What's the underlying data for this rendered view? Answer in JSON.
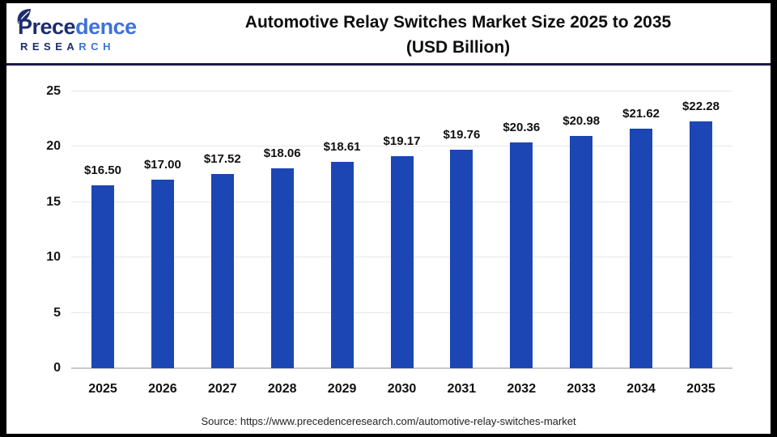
{
  "header": {
    "logo": {
      "name_dark": "Prece",
      "name_light": "dence",
      "sub_dark": "RESEA",
      "sub_light": "RCH"
    },
    "title_line1": "Automotive Relay Switches Market Size 2025 to 2035",
    "title_line2": "(USD Billion)"
  },
  "footer": {
    "source": "Source: https://www.precedenceresearch.com/automotive-relay-switches-market"
  },
  "colors": {
    "bar": "#1b46b3",
    "header_rule": "#191a4e",
    "gridline": "#e7e7e7",
    "axis_line": "#c9c9c9",
    "logo_dark": "#1d2d6e",
    "logo_light": "#3f72d9",
    "text": "#111111"
  },
  "chart_data": {
    "type": "bar",
    "title": "Automotive Relay Switches Market Size 2025 to 2035 (USD Billion)",
    "categories": [
      "2025",
      "2026",
      "2027",
      "2028",
      "2029",
      "2030",
      "2031",
      "2032",
      "2033",
      "2034",
      "2035"
    ],
    "values": [
      16.5,
      17.0,
      17.52,
      18.06,
      18.61,
      19.17,
      19.76,
      20.36,
      20.98,
      21.62,
      22.28
    ],
    "bar_labels": [
      "$16.50",
      "$17.00",
      "$17.52",
      "$18.06",
      "$18.61",
      "$19.17",
      "$19.76",
      "$20.36",
      "$20.98",
      "$21.62",
      "$22.28"
    ],
    "xlabel": "",
    "ylabel": "",
    "ylim": [
      0,
      25
    ],
    "yticks": [
      0,
      5,
      10,
      15,
      20,
      25
    ],
    "grid": true,
    "legend": false,
    "bar_color": "#1b46b3"
  }
}
